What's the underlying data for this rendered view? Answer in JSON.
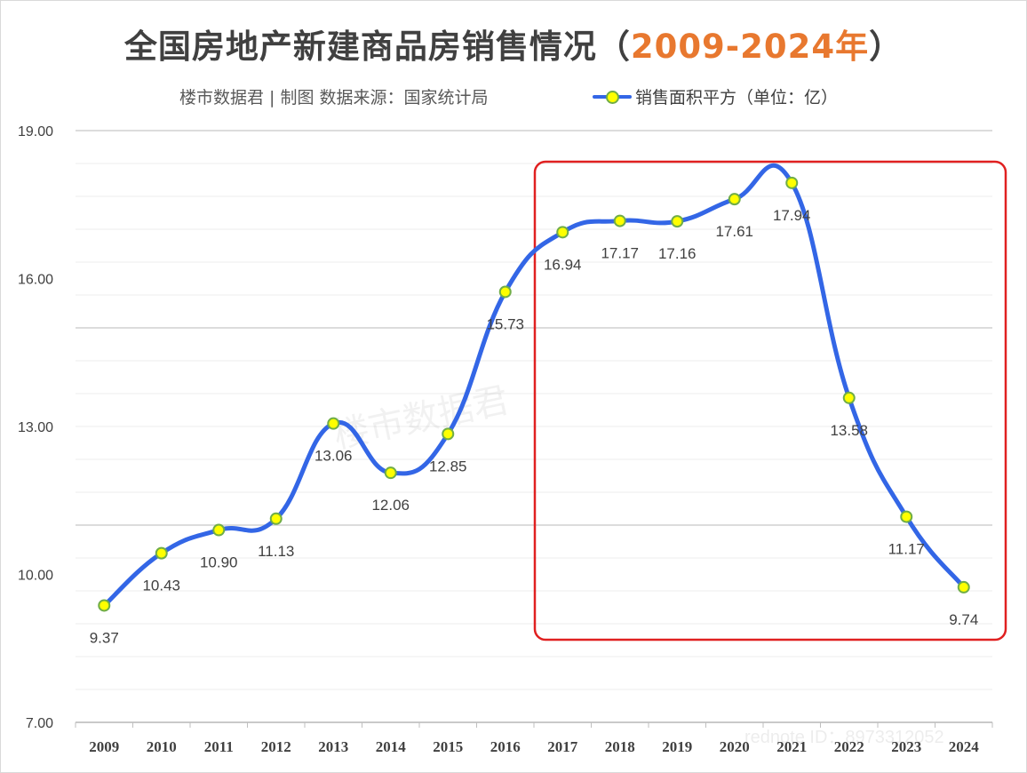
{
  "title_main": "全国房地产新建商品房销售情况（",
  "title_years": "2009-2024年",
  "title_close": "）",
  "subtitle": "楼市数据君 | 制图  数据来源：国家统计局",
  "watermark": "楼市数据君",
  "watermark_id": "rednote ID：8973312052",
  "colors": {
    "line": "#3366e6",
    "marker_fill": "#ffff00",
    "marker_edge": "#70ad47",
    "highlight_box": "#e02020",
    "title_accent": "#e8782f"
  },
  "chart_data": {
    "type": "line",
    "title": "全国房地产新建商品房销售情况（2009-2024年）",
    "categories": [
      "2009",
      "2010",
      "2011",
      "2012",
      "2013",
      "2014",
      "2015",
      "2016",
      "2017",
      "2018",
      "2019",
      "2020",
      "2021",
      "2022",
      "2023",
      "2024"
    ],
    "series": [
      {
        "name": "销售面积平方（单位：亿）",
        "values": [
          9.37,
          10.43,
          10.9,
          11.13,
          13.06,
          12.06,
          12.85,
          15.73,
          16.94,
          17.17,
          17.16,
          17.61,
          17.94,
          13.58,
          11.17,
          9.74
        ]
      }
    ],
    "ylim": [
      7,
      19
    ],
    "yticks": [
      "7.00",
      "10.00",
      "13.00",
      "16.00",
      "19.00"
    ],
    "grid": true,
    "legend_position": "top-right",
    "highlight_range": [
      "2017",
      "2024"
    ]
  }
}
